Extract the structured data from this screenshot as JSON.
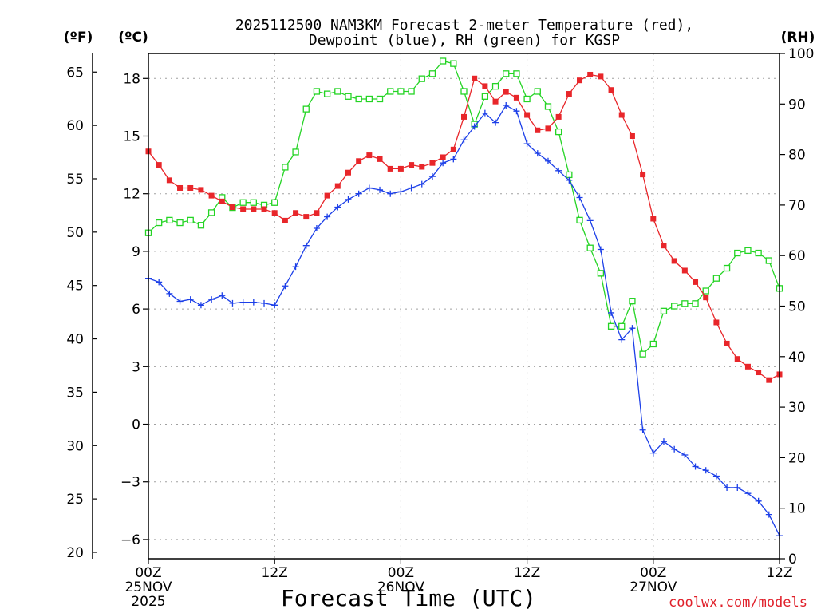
{
  "chart_data": {
    "type": "line",
    "title_line1": "2025112500 NAM3KM Forecast 2-meter Temperature (red),",
    "title_line2": "Dewpoint (blue), RH (green) for KGSP",
    "xlabel": "Forecast Time (UTC)",
    "credit": "coolwx.com/models",
    "units": {
      "f": "(ºF)",
      "c": "(ºC)",
      "rh": "(RH)"
    },
    "x_range_hours": [
      0,
      60
    ],
    "y_c_range": [
      -7,
      19.3
    ],
    "y_rh_range": [
      0,
      100
    ],
    "c_ticks": [
      -6,
      -3,
      0,
      3,
      6,
      9,
      12,
      15,
      18
    ],
    "c_tick_labels": [
      "−6",
      "−3",
      "0",
      "3",
      "6",
      "9",
      "12",
      "15",
      "18"
    ],
    "f_ticks": [
      20,
      25,
      30,
      35,
      40,
      45,
      50,
      55,
      60,
      65
    ],
    "f_tick_labels": [
      "20",
      "25",
      "30",
      "35",
      "40",
      "45",
      "50",
      "55",
      "60",
      "65"
    ],
    "rh_ticks": [
      0,
      10,
      20,
      30,
      40,
      50,
      60,
      70,
      80,
      90,
      100
    ],
    "rh_tick_labels": [
      "0",
      "10",
      "20",
      "30",
      "40",
      "50",
      "60",
      "70",
      "80",
      "90",
      "100"
    ],
    "x_ticks": [
      {
        "hour": 0,
        "line1": "00Z",
        "line2": "25NOV",
        "line3": "2025"
      },
      {
        "hour": 12,
        "line1": "12Z",
        "line2": "",
        "line3": ""
      },
      {
        "hour": 24,
        "line1": "00Z",
        "line2": "26NOV",
        "line3": ""
      },
      {
        "hour": 36,
        "line1": "12Z",
        "line2": "",
        "line3": ""
      },
      {
        "hour": 48,
        "line1": "00Z",
        "line2": "27NOV",
        "line3": ""
      },
      {
        "hour": 60,
        "line1": "12Z",
        "line2": "",
        "line3": ""
      }
    ],
    "hours": [
      0,
      1,
      2,
      3,
      4,
      5,
      6,
      7,
      8,
      9,
      10,
      11,
      12,
      13,
      14,
      15,
      16,
      17,
      18,
      19,
      20,
      21,
      22,
      23,
      24,
      25,
      26,
      27,
      28,
      29,
      30,
      31,
      32,
      33,
      34,
      35,
      36,
      37,
      38,
      39,
      40,
      41,
      42,
      43,
      44,
      45,
      46,
      47,
      48,
      49,
      50,
      51,
      52,
      53,
      54,
      55,
      56,
      57,
      58,
      59,
      60
    ],
    "series": [
      {
        "name": "2-meter Temperature",
        "unit": "degC",
        "color": "#e8262a",
        "marker": "filled-square",
        "values": [
          14.2,
          13.5,
          12.7,
          12.3,
          12.3,
          12.2,
          11.9,
          11.6,
          11.3,
          11.2,
          11.2,
          11.2,
          11.0,
          10.6,
          11.0,
          10.8,
          11.0,
          11.9,
          12.4,
          13.1,
          13.7,
          14.0,
          13.8,
          13.3,
          13.3,
          13.5,
          13.4,
          13.6,
          13.9,
          14.3,
          16.0,
          18.0,
          17.6,
          16.8,
          17.3,
          17.0,
          16.1,
          15.3,
          15.4,
          16.0,
          17.2,
          17.9,
          18.2,
          18.1,
          17.4,
          16.1,
          15.0,
          13.0,
          10.7,
          9.3,
          8.5,
          8.0,
          7.4,
          6.6,
          5.3,
          4.2,
          3.4,
          3.0,
          2.7,
          2.3,
          2.6
        ]
      },
      {
        "name": "Dewpoint",
        "unit": "degC",
        "color": "#1c3fe8",
        "marker": "plus",
        "values": [
          7.6,
          7.4,
          6.8,
          6.4,
          6.5,
          6.2,
          6.5,
          6.7,
          6.3,
          6.35,
          6.35,
          6.3,
          6.2,
          7.2,
          8.2,
          9.3,
          10.2,
          10.8,
          11.3,
          11.7,
          12.0,
          12.3,
          12.2,
          12.0,
          12.1,
          12.3,
          12.5,
          12.9,
          13.6,
          13.8,
          14.8,
          15.5,
          16.2,
          15.7,
          16.6,
          16.3,
          14.6,
          14.1,
          13.7,
          13.2,
          12.7,
          11.8,
          10.6,
          9.1,
          5.8,
          4.4,
          5.0,
          -0.3,
          -1.5,
          -0.9,
          -1.3,
          -1.6,
          -2.2,
          -2.4,
          -2.7,
          -3.3,
          -3.3,
          -3.6,
          -4.0,
          -4.7,
          -5.8
        ]
      },
      {
        "name": "RH",
        "unit": "percent",
        "color": "#24d424",
        "marker": "open-square",
        "values": [
          64.5,
          66.5,
          67,
          66.5,
          67,
          66,
          68.5,
          71.5,
          69.5,
          70.5,
          70.5,
          70,
          70.5,
          77.5,
          80.5,
          89,
          92.5,
          92,
          92.5,
          91.5,
          91,
          91,
          91,
          92.5,
          92.5,
          92.5,
          95,
          96,
          98.5,
          98,
          92.5,
          86,
          91.5,
          93.5,
          96,
          96,
          91,
          92.5,
          89.5,
          84.5,
          76,
          67,
          61.5,
          56.5,
          46,
          46,
          51,
          40.5,
          42.5,
          49,
          50,
          50.5,
          50.5,
          53,
          55.5,
          57.5,
          60.5,
          61,
          60.5,
          59,
          53.5
        ]
      }
    ]
  }
}
